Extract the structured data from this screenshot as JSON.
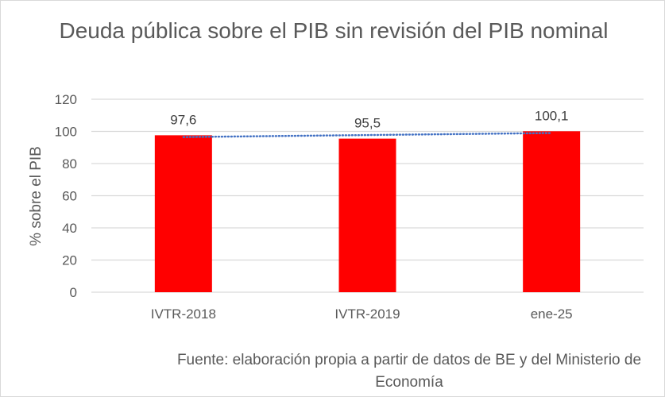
{
  "chart_data": {
    "type": "bar",
    "title": "Deuda pública sobre el PIB sin revisión del PIB nominal",
    "categories": [
      "IVTR-2018",
      "IVTR-2019",
      "ene-25"
    ],
    "values": [
      97.6,
      95.5,
      100.1
    ],
    "data_labels": [
      "97,6",
      "95,5",
      "100,1"
    ],
    "xlabel": "",
    "ylabel": "% sobre el PIB",
    "ylim": [
      0,
      120
    ],
    "yticks": [
      0,
      20,
      40,
      60,
      80,
      100,
      120
    ],
    "grid": true,
    "trendline": {
      "type": "linear",
      "style": "dotted"
    },
    "bar_color": "#ff0000",
    "trend_color": "#4472c4",
    "source": "Fuente: elaboración propia a partir de datos de BE y del Ministerio de Economía"
  }
}
